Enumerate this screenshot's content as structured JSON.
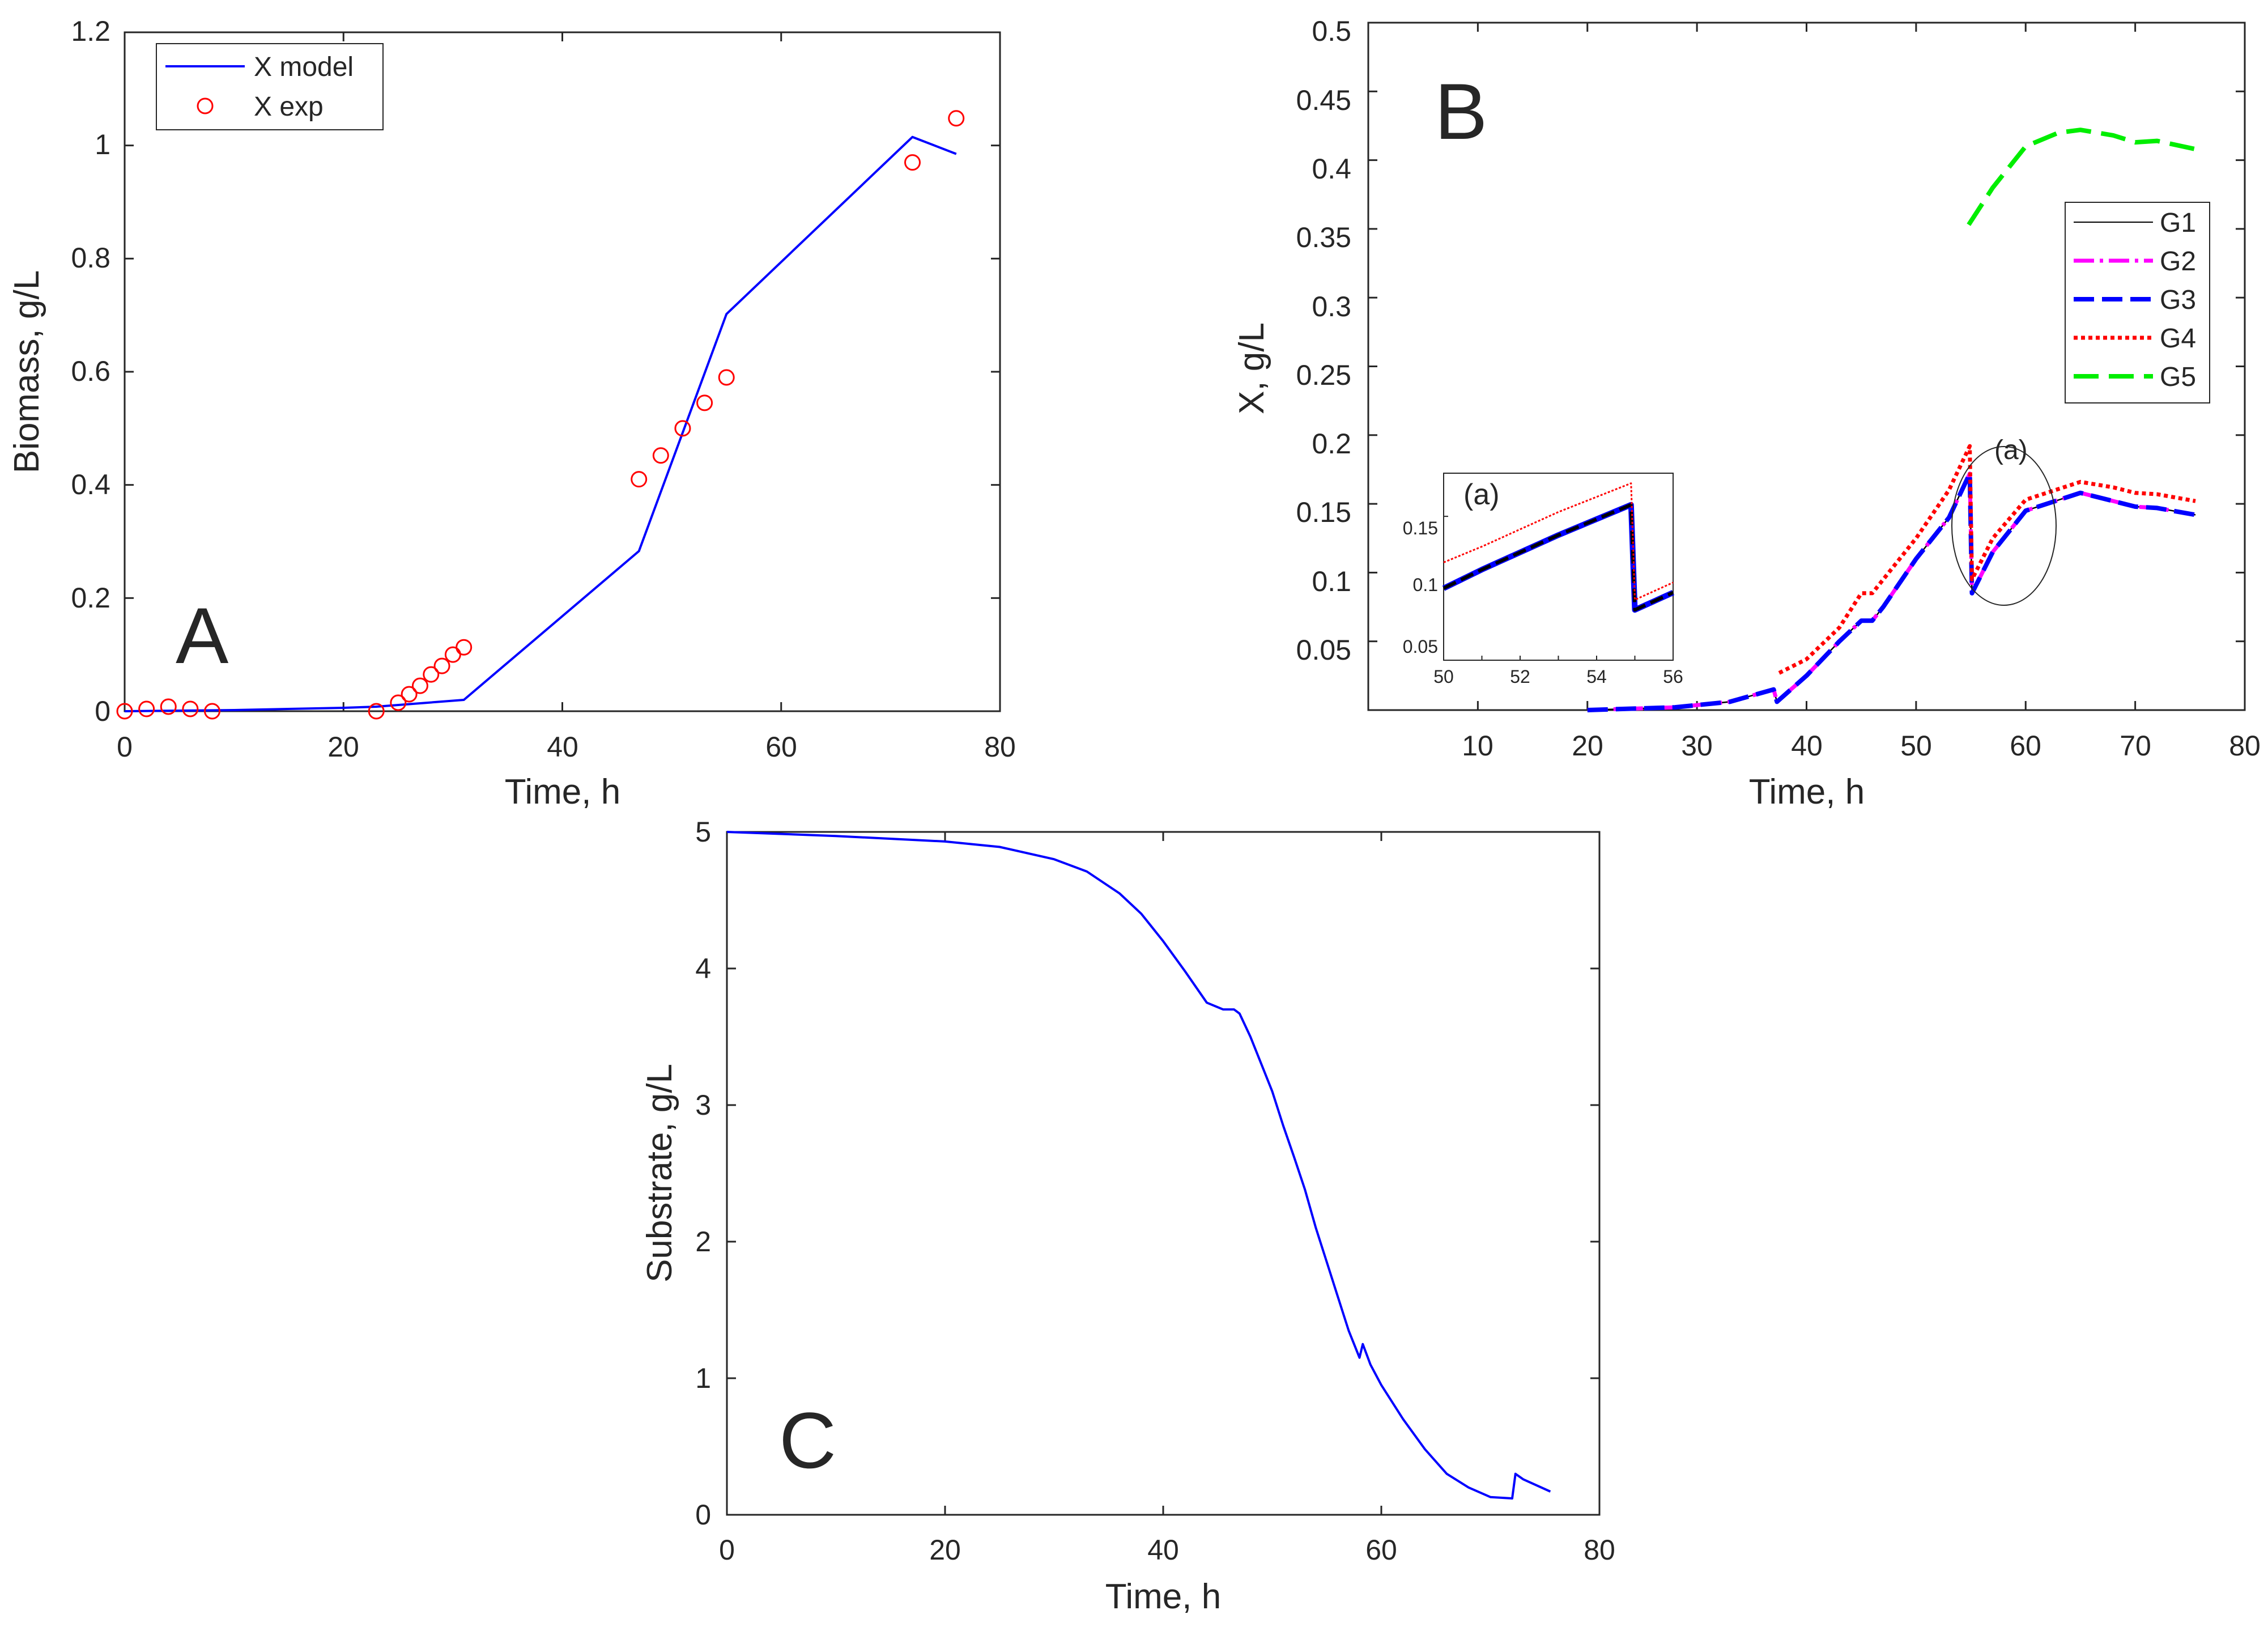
{
  "chart_data": [
    {
      "panel": "A",
      "type": "line",
      "panel_label": "A",
      "xlabel": "Time, h",
      "ylabel": "Biomass, g/L",
      "xlim": [
        0,
        80
      ],
      "ylim": [
        0,
        1.2
      ],
      "xticks": [
        "0",
        "20",
        "40",
        "60",
        "80"
      ],
      "yticks": [
        "0",
        "0.2",
        "0.4",
        "0.6",
        "0.8",
        "1",
        "1.2"
      ],
      "legend_position": "top-left",
      "series": [
        {
          "name": "X model",
          "style": "line",
          "color": "#0000ff",
          "x": [
            0,
            10,
            20,
            23,
            31,
            47,
            55,
            72,
            76
          ],
          "y": [
            0.0,
            0.002,
            0.006,
            0.008,
            0.02,
            0.283,
            0.702,
            1.015,
            0.985
          ]
        },
        {
          "name": "X exp",
          "style": "marker-circle",
          "color": "#ff0000",
          "x": [
            0,
            2,
            4,
            6,
            8,
            23,
            25,
            26,
            27,
            28,
            29,
            30,
            31,
            47,
            49,
            51,
            53,
            55,
            72,
            76
          ],
          "y": [
            0.0,
            0.004,
            0.008,
            0.004,
            0.0,
            0.0,
            0.015,
            0.03,
            0.045,
            0.065,
            0.08,
            0.1,
            0.113,
            0.41,
            0.452,
            0.5,
            0.545,
            0.59,
            0.97,
            1.048
          ]
        }
      ]
    },
    {
      "panel": "B",
      "type": "line",
      "panel_label": "B",
      "xlabel": "Time, h",
      "ylabel": "X, g/L",
      "xlim": [
        0,
        80
      ],
      "ylim": [
        0,
        0.5
      ],
      "xticks": [
        "10",
        "20",
        "30",
        "40",
        "50",
        "60",
        "70",
        "80"
      ],
      "yticks": [
        "0.05",
        "0.1",
        "0.15",
        "0.2",
        "0.25",
        "0.3",
        "0.35",
        "0.4",
        "0.45",
        "0.5"
      ],
      "legend_position": "right",
      "annotation": "(a)",
      "series": [
        {
          "name": "G1",
          "color": "#000000",
          "dash": "solid",
          "x": [
            20,
            28,
            33,
            37,
            37.3,
            40,
            43,
            45,
            46,
            47,
            50,
            53,
            54.9,
            55.1,
            57,
            60,
            65,
            68,
            70,
            72,
            75.5
          ],
          "y": [
            0,
            0.002,
            0.006,
            0.015,
            0.006,
            0.025,
            0.05,
            0.065,
            0.065,
            0.075,
            0.11,
            0.14,
            0.172,
            0.085,
            0.115,
            0.145,
            0.158,
            0.152,
            0.148,
            0.147,
            0.142
          ]
        },
        {
          "name": "G2",
          "color": "#ff00ff",
          "dash": "dashdot",
          "x": [
            20,
            28,
            33,
            37,
            37.3,
            40,
            43,
            45,
            46,
            47,
            50,
            53,
            54.9,
            55.1,
            57,
            60,
            65,
            68,
            70,
            72,
            75.5
          ],
          "y": [
            0,
            0.002,
            0.006,
            0.015,
            0.006,
            0.025,
            0.05,
            0.065,
            0.065,
            0.075,
            0.11,
            0.14,
            0.172,
            0.085,
            0.115,
            0.145,
            0.158,
            0.152,
            0.148,
            0.147,
            0.142
          ]
        },
        {
          "name": "G3",
          "color": "#0000ff",
          "dash": "dash",
          "x": [
            20,
            28,
            33,
            37,
            37.3,
            40,
            43,
            45,
            46,
            47,
            50,
            53,
            54.9,
            55.1,
            57,
            60,
            65,
            68,
            70,
            72,
            75.5
          ],
          "y": [
            0,
            0.002,
            0.006,
            0.015,
            0.006,
            0.025,
            0.05,
            0.065,
            0.065,
            0.075,
            0.11,
            0.14,
            0.172,
            0.085,
            0.115,
            0.145,
            0.158,
            0.152,
            0.148,
            0.147,
            0.142
          ]
        },
        {
          "name": "G4",
          "color": "#ff0000",
          "dash": "dot",
          "x": [
            37.5,
            40,
            43,
            45,
            46,
            47,
            50,
            53,
            54.9,
            55.1,
            57,
            60,
            65,
            68,
            70,
            72,
            75.5
          ],
          "y": [
            0.027,
            0.037,
            0.06,
            0.085,
            0.085,
            0.095,
            0.125,
            0.16,
            0.192,
            0.095,
            0.125,
            0.153,
            0.166,
            0.162,
            0.158,
            0.157,
            0.152
          ]
        },
        {
          "name": "G5",
          "color": "#00ee00",
          "dash": "longdash",
          "x": [
            54.8,
            57,
            60,
            63,
            65,
            68,
            70,
            72,
            75.5
          ],
          "y": [
            0.353,
            0.38,
            0.41,
            0.42,
            0.422,
            0.418,
            0.413,
            0.414,
            0.408
          ]
        }
      ],
      "inset": {
        "label": "(a)",
        "xlim": [
          50,
          56
        ],
        "ylim": [
          0.05,
          0.18
        ],
        "xticks": [
          "50",
          "52",
          "54",
          "56"
        ],
        "yticks": [
          "0.05",
          "0.1",
          "0.15"
        ],
        "series": [
          {
            "name": "G1-G3",
            "color": "#000000",
            "x": [
              50,
              51,
              53,
              54.9,
              55.0,
              56
            ],
            "y": [
              0.1,
              0.113,
              0.137,
              0.158,
              0.085,
              0.097
            ]
          },
          {
            "name": "G4",
            "color": "#ff0000",
            "x": [
              50,
              51,
              53,
              54.9,
              55.0,
              56
            ],
            "y": [
              0.118,
              0.129,
              0.153,
              0.173,
              0.092,
              0.104
            ]
          }
        ]
      }
    },
    {
      "panel": "C",
      "type": "line",
      "panel_label": "C",
      "xlabel": "Time, h",
      "ylabel": "Substrate, g/L",
      "xlim": [
        0,
        80
      ],
      "ylim": [
        0,
        5
      ],
      "xticks": [
        "0",
        "20",
        "40",
        "60",
        "80"
      ],
      "yticks": [
        "0",
        "1",
        "2",
        "3",
        "4",
        "5"
      ],
      "series": [
        {
          "name": "",
          "color": "#0000ff",
          "x": [
            0,
            10,
            20,
            25,
            30,
            33,
            36,
            38,
            40,
            42,
            44,
            45.5,
            46.5,
            47,
            48,
            49,
            50,
            51,
            52,
            53,
            54,
            55,
            56,
            57,
            58,
            58.3,
            59,
            60,
            62,
            64,
            66,
            68,
            70,
            72,
            72.3,
            73,
            75.5
          ],
          "y": [
            5.0,
            4.97,
            4.93,
            4.89,
            4.8,
            4.71,
            4.55,
            4.4,
            4.2,
            3.98,
            3.75,
            3.7,
            3.7,
            3.67,
            3.5,
            3.3,
            3.1,
            2.85,
            2.62,
            2.38,
            2.1,
            1.85,
            1.6,
            1.35,
            1.15,
            1.25,
            1.1,
            0.95,
            0.7,
            0.48,
            0.3,
            0.2,
            0.13,
            0.12,
            0.3,
            0.26,
            0.17
          ]
        }
      ]
    }
  ]
}
